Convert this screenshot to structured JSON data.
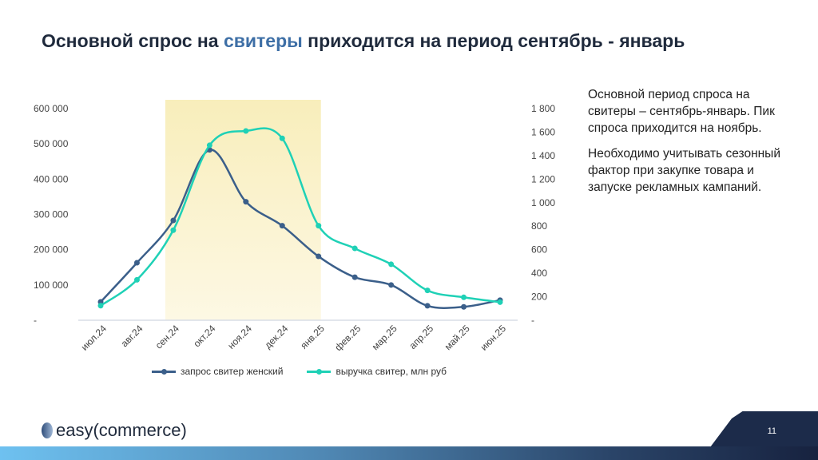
{
  "title": {
    "before": "Основной спрос на ",
    "accent": "свитеры",
    "after": " приходится на период сентябрь - январь"
  },
  "side_text": [
    "Основной период спроса на свитеры – сентябрь-январь. Пик спроса приходится на ноябрь.",
    "Необходимо учитывать сезонный фактор при закупке товара и запуске рекламных кампаний."
  ],
  "chart_data": {
    "type": "line",
    "categories": [
      "июл.24",
      "авг.24",
      "сен.24",
      "окт.24",
      "ноя.24",
      "дек.24",
      "янв.25",
      "фев.25",
      "мар.25",
      "апр.25",
      "май.25",
      "июн.25"
    ],
    "series": [
      {
        "name": "запрос свитер женский",
        "axis": "left",
        "color": "#3b5f8a",
        "values": [
          52000,
          163000,
          283000,
          483000,
          336000,
          268000,
          181000,
          122000,
          100000,
          41000,
          38000,
          57000
        ]
      },
      {
        "name": "выручка свитер, млн руб",
        "axis": "right",
        "color": "#1fd1b6",
        "values": [
          124,
          344,
          766,
          1488,
          1610,
          1547,
          804,
          611,
          476,
          254,
          195,
          154
        ]
      }
    ],
    "left_axis": {
      "range": [
        0,
        600000
      ],
      "ticks": [
        "-",
        "100 000",
        "200 000",
        "300 000",
        "400 000",
        "500 000",
        "600 000"
      ]
    },
    "right_axis": {
      "range": [
        0,
        1800
      ],
      "ticks": [
        "-",
        "200",
        "400",
        "600",
        "800",
        "1 000",
        "1 200",
        "1 400",
        "1 600",
        "1 800"
      ]
    },
    "highlight": {
      "from": "сен.24",
      "to": "янв.25",
      "color": "#f8eebb"
    },
    "legend": "bottom"
  },
  "footer": {
    "logo": "easy(commerce)",
    "page": "11"
  }
}
